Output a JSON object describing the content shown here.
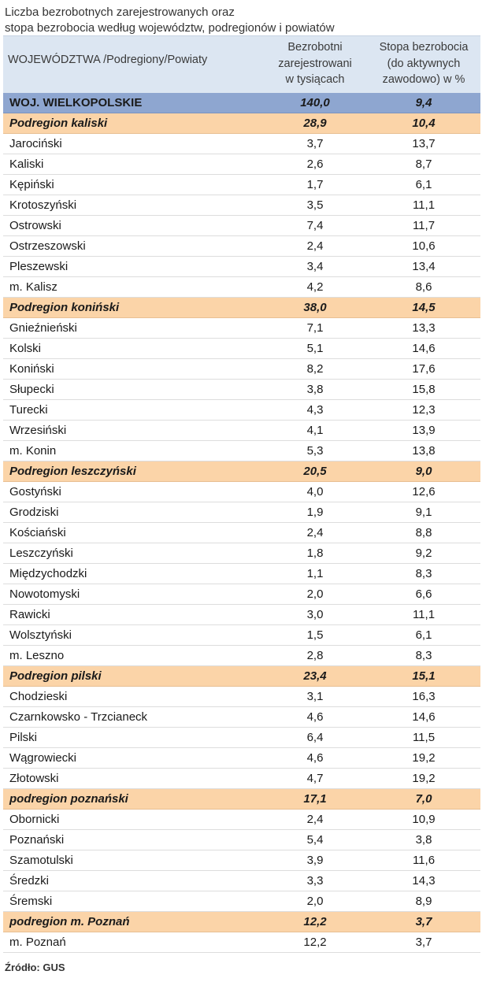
{
  "title_lines": [
    "Liczba bezrobotnych zarejestrowanych oraz",
    "stopa bezrobocia według województw, podregionów  i  powiatów"
  ],
  "header": {
    "col1": "WOJEWÓDZTWA /Podregiony/Powiaty",
    "col2_lines": [
      "Bezrobotni",
      "zarejestrowani",
      "w tysiącach"
    ],
    "col3_lines": [
      "Stopa bezrobocia",
      "(do aktywnych",
      "zawodowo) w %"
    ]
  },
  "source": "Źródło: GUS",
  "colors": {
    "header_bg": "#dce6f2",
    "voivodeship_bg": "#8ea6d0",
    "subregion_bg": "#fbd4a8"
  },
  "chart_data": {
    "type": "table",
    "title": "Liczba bezrobotnych zarejestrowanych oraz stopa bezrobocia według województw, podregionów i powiatów",
    "columns": [
      "WOJEWÓDZTWA /Podregiony/Powiaty",
      "Bezrobotni zarejestrowani w tysiącach",
      "Stopa bezrobocia (do aktywnych zawodowo) w %"
    ],
    "rows": [
      {
        "name": "WOJ. WIELKOPOLSKIE",
        "unemployed": "140,0",
        "rate": "9,4",
        "level": "voivodeship"
      },
      {
        "name": "Podregion kaliski",
        "unemployed": "28,9",
        "rate": "10,4",
        "level": "subregion"
      },
      {
        "name": "Jarociński",
        "unemployed": "3,7",
        "rate": "13,7",
        "level": "county"
      },
      {
        "name": "Kaliski",
        "unemployed": "2,6",
        "rate": "8,7",
        "level": "county"
      },
      {
        "name": "Kępiński",
        "unemployed": "1,7",
        "rate": "6,1",
        "level": "county"
      },
      {
        "name": "Krotoszyński",
        "unemployed": "3,5",
        "rate": "11,1",
        "level": "county"
      },
      {
        "name": "Ostrowski",
        "unemployed": "7,4",
        "rate": "11,7",
        "level": "county"
      },
      {
        "name": "Ostrzeszowski",
        "unemployed": "2,4",
        "rate": "10,6",
        "level": "county"
      },
      {
        "name": "Pleszewski",
        "unemployed": "3,4",
        "rate": "13,4",
        "level": "county"
      },
      {
        "name": "m. Kalisz",
        "unemployed": "4,2",
        "rate": "8,6",
        "level": "county"
      },
      {
        "name": "Podregion koniński",
        "unemployed": "38,0",
        "rate": "14,5",
        "level": "subregion"
      },
      {
        "name": "Gnieźnieński",
        "unemployed": "7,1",
        "rate": "13,3",
        "level": "county"
      },
      {
        "name": "Kolski",
        "unemployed": "5,1",
        "rate": "14,6",
        "level": "county"
      },
      {
        "name": "Koniński",
        "unemployed": "8,2",
        "rate": "17,6",
        "level": "county"
      },
      {
        "name": "Słupecki",
        "unemployed": "3,8",
        "rate": "15,8",
        "level": "county"
      },
      {
        "name": "Turecki",
        "unemployed": "4,3",
        "rate": "12,3",
        "level": "county"
      },
      {
        "name": "Wrzesiński",
        "unemployed": "4,1",
        "rate": "13,9",
        "level": "county"
      },
      {
        "name": "m. Konin",
        "unemployed": "5,3",
        "rate": "13,8",
        "level": "county"
      },
      {
        "name": "Podregion leszczyński",
        "unemployed": "20,5",
        "rate": "9,0",
        "level": "subregion"
      },
      {
        "name": "Gostyński",
        "unemployed": "4,0",
        "rate": "12,6",
        "level": "county"
      },
      {
        "name": "Grodziski",
        "unemployed": "1,9",
        "rate": "9,1",
        "level": "county"
      },
      {
        "name": "Kościański",
        "unemployed": "2,4",
        "rate": "8,8",
        "level": "county"
      },
      {
        "name": "Leszczyński",
        "unemployed": "1,8",
        "rate": "9,2",
        "level": "county"
      },
      {
        "name": "Międzychodzki",
        "unemployed": "1,1",
        "rate": "8,3",
        "level": "county"
      },
      {
        "name": "Nowotomyski",
        "unemployed": "2,0",
        "rate": "6,6",
        "level": "county"
      },
      {
        "name": "Rawicki",
        "unemployed": "3,0",
        "rate": "11,1",
        "level": "county"
      },
      {
        "name": "Wolsztyński",
        "unemployed": "1,5",
        "rate": "6,1",
        "level": "county"
      },
      {
        "name": "m. Leszno",
        "unemployed": "2,8",
        "rate": "8,3",
        "level": "county"
      },
      {
        "name": "Podregion pilski",
        "unemployed": "23,4",
        "rate": "15,1",
        "level": "subregion"
      },
      {
        "name": "Chodzieski",
        "unemployed": "3,1",
        "rate": "16,3",
        "level": "county"
      },
      {
        "name": "Czarnkowsko - Trzcianeck",
        "unemployed": "4,6",
        "rate": "14,6",
        "level": "county"
      },
      {
        "name": "Pilski",
        "unemployed": "6,4",
        "rate": "11,5",
        "level": "county"
      },
      {
        "name": "Wągrowiecki",
        "unemployed": "4,6",
        "rate": "19,2",
        "level": "county"
      },
      {
        "name": "Złotowski",
        "unemployed": "4,7",
        "rate": "19,2",
        "level": "county"
      },
      {
        "name": "podregion poznański",
        "unemployed": "17,1",
        "rate": "7,0",
        "level": "subregion"
      },
      {
        "name": "Obornicki",
        "unemployed": "2,4",
        "rate": "10,9",
        "level": "county"
      },
      {
        "name": "Poznański",
        "unemployed": "5,4",
        "rate": "3,8",
        "level": "county"
      },
      {
        "name": "Szamotulski",
        "unemployed": "3,9",
        "rate": "11,6",
        "level": "county"
      },
      {
        "name": "Średzki",
        "unemployed": "3,3",
        "rate": "14,3",
        "level": "county"
      },
      {
        "name": "Śremski",
        "unemployed": "2,0",
        "rate": "8,9",
        "level": "county"
      },
      {
        "name": "podregion m. Poznań",
        "unemployed": "12,2",
        "rate": "3,7",
        "level": "subregion"
      },
      {
        "name": "m. Poznań",
        "unemployed": "12,2",
        "rate": "3,7",
        "level": "county"
      }
    ]
  }
}
